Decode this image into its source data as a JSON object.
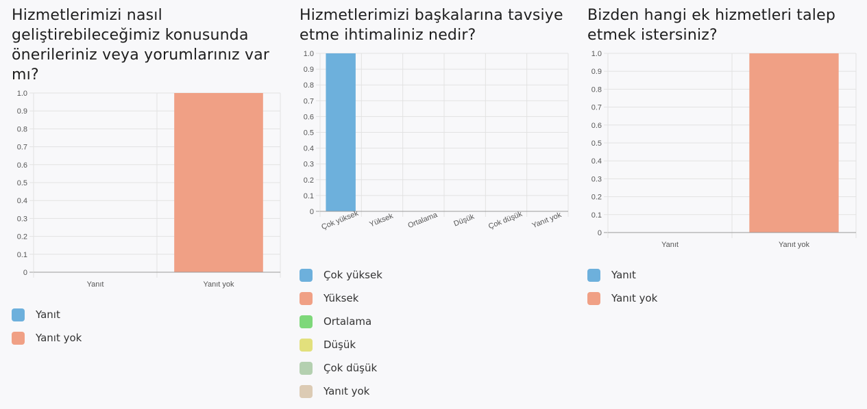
{
  "charts": [
    {
      "title": "Hizmetlerimizi nasıl geliştirebileceğimiz konusunda önerileriniz veya yorumlarınız var mı?",
      "legend": [
        {
          "label": "Yanıt",
          "color": "#6db0dc"
        },
        {
          "label": "Yanıt yok",
          "color": "#f0a085"
        }
      ]
    },
    {
      "title": "Hizmetlerimizi başkalarına tavsiye etme ihtimaliniz nedir?",
      "legend": [
        {
          "label": "Çok yüksek",
          "color": "#6db0dc"
        },
        {
          "label": "Yüksek",
          "color": "#f0a085"
        },
        {
          "label": "Ortalama",
          "color": "#7ed87a"
        },
        {
          "label": "Düşük",
          "color": "#e2e07c"
        },
        {
          "label": "Çok düşük",
          "color": "#b4d0b0"
        },
        {
          "label": "Yanıt yok",
          "color": "#dccbb4"
        }
      ]
    },
    {
      "title": "Bizden hangi ek hizmetleri talep etmek istersiniz?",
      "legend": [
        {
          "label": "Yanıt",
          "color": "#6db0dc"
        },
        {
          "label": "Yanıt yok",
          "color": "#f0a085"
        }
      ]
    }
  ],
  "chart_data": [
    {
      "type": "bar",
      "categories": [
        "Yanıt",
        "Yanıt yok"
      ],
      "values": [
        0,
        1
      ],
      "colors": [
        "#6db0dc",
        "#f0a085"
      ],
      "ylim": [
        0,
        1
      ],
      "yticks": [
        "0",
        "0.1",
        "0.2",
        "0.3",
        "0.4",
        "0.5",
        "0.6",
        "0.7",
        "0.8",
        "0.9",
        "1.0"
      ],
      "grid": true,
      "legend_position": "bottom"
    },
    {
      "type": "bar",
      "categories": [
        "Çok yüksek",
        "Yüksek",
        "Ortalama",
        "Düşük",
        "Çok düşük",
        "Yanıt yok"
      ],
      "values": [
        1,
        0,
        0,
        0,
        0,
        0
      ],
      "colors": [
        "#6db0dc",
        "#f0a085",
        "#7ed87a",
        "#e2e07c",
        "#b4d0b0",
        "#dccbb4"
      ],
      "ylim": [
        0,
        1
      ],
      "yticks": [
        "0",
        "0.1",
        "0.2",
        "0.3",
        "0.4",
        "0.5",
        "0.6",
        "0.7",
        "0.8",
        "0.9",
        "1.0"
      ],
      "grid": true,
      "x_label_rotation": "rotated",
      "legend_position": "bottom"
    },
    {
      "type": "bar",
      "categories": [
        "Yanıt",
        "Yanıt yok"
      ],
      "values": [
        0,
        1
      ],
      "colors": [
        "#6db0dc",
        "#f0a085"
      ],
      "ylim": [
        0,
        1
      ],
      "yticks": [
        "0",
        "0.1",
        "0.2",
        "0.3",
        "0.4",
        "0.5",
        "0.6",
        "0.7",
        "0.8",
        "0.9",
        "1.0"
      ],
      "grid": true,
      "legend_position": "bottom"
    }
  ]
}
